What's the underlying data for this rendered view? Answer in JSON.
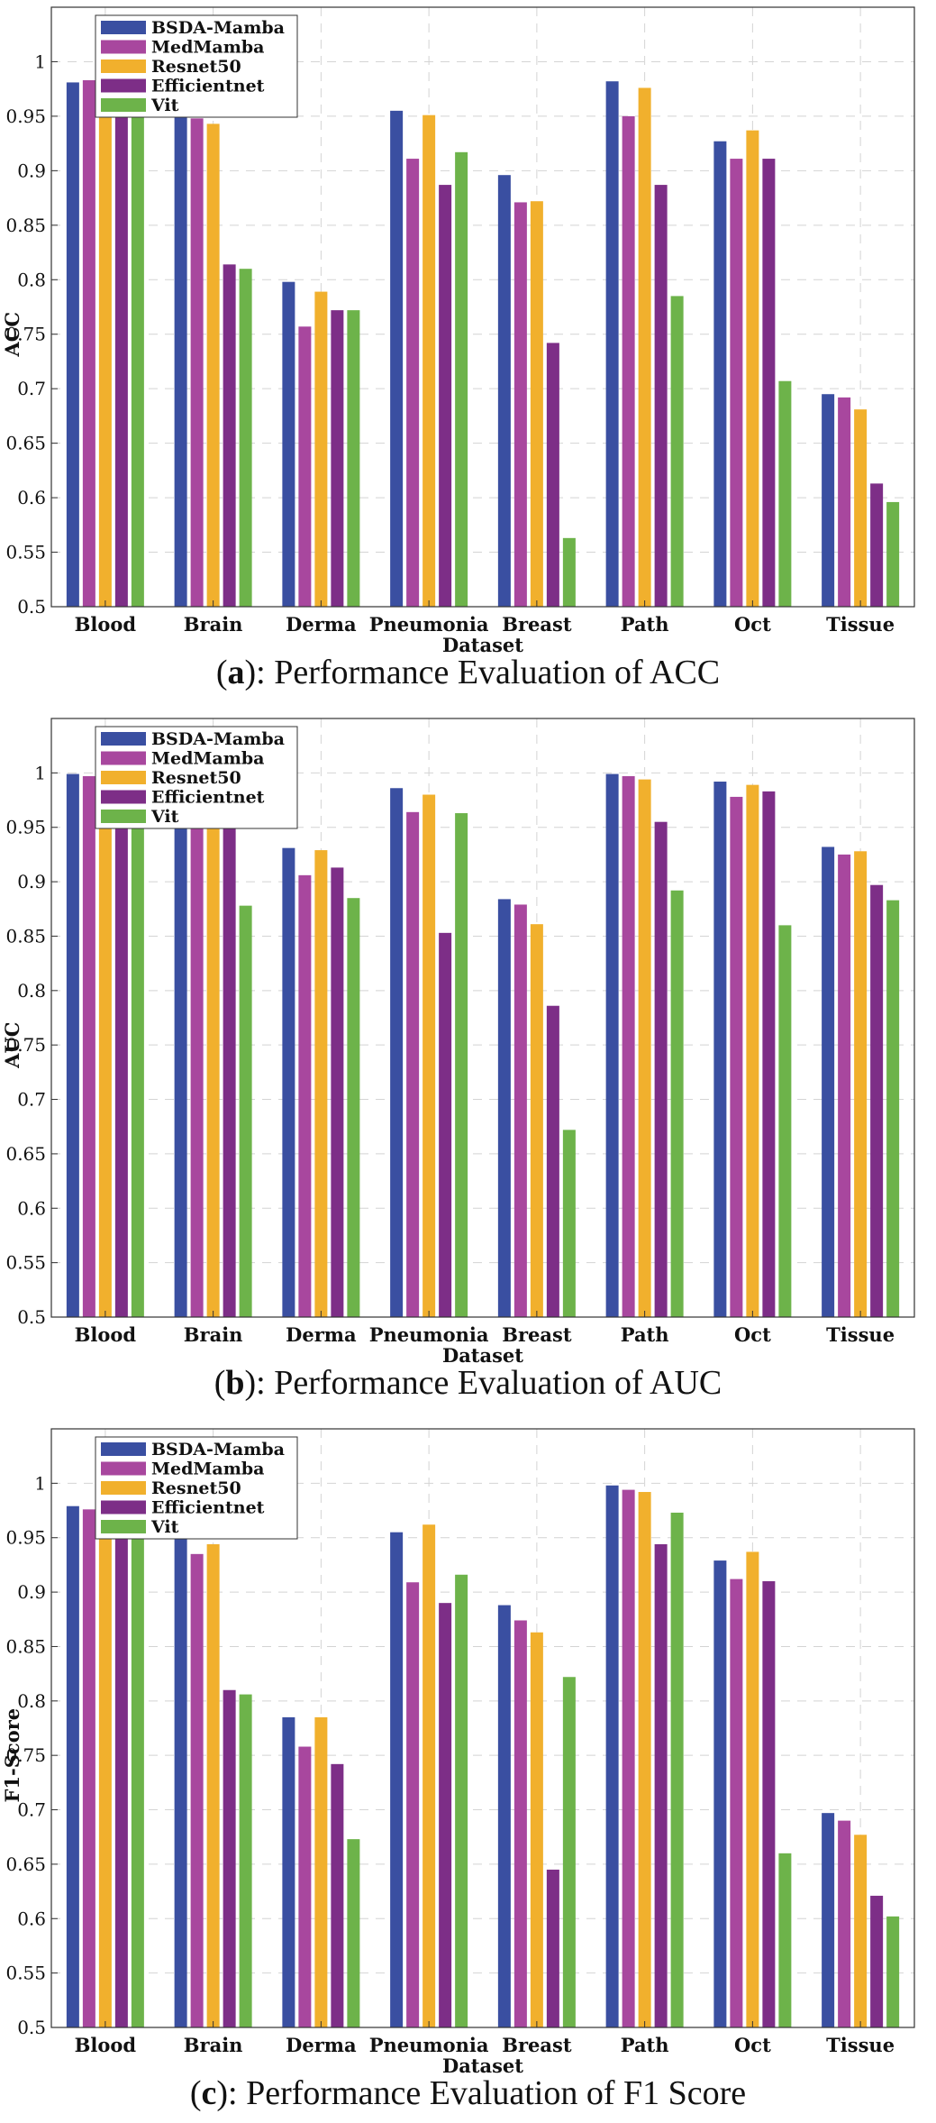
{
  "chart_data": [
    {
      "type": "bar",
      "panel": "a",
      "caption": "Performance Evaluation of ACC",
      "xlabel": "Dataset",
      "ylabel": "ACC",
      "ylim": [
        0.5,
        1.05
      ],
      "yticks": [
        "0.5",
        "0.55",
        "0.6",
        "0.65",
        "0.7",
        "0.75",
        "0.8",
        "0.85",
        "0.9",
        "0.95",
        "1"
      ],
      "grid": true,
      "legend": "top-left",
      "categories": [
        "Blood",
        "Brain",
        "Derma",
        "Pneumonia",
        "Breast",
        "Path",
        "Oct",
        "Tissue"
      ],
      "series": [
        {
          "name": "BSDA-Mamba",
          "values": [
            0.981,
            0.965,
            0.798,
            0.955,
            0.896,
            0.982,
            0.927,
            0.695
          ]
        },
        {
          "name": "MedMamba",
          "values": [
            0.983,
            0.948,
            0.757,
            0.911,
            0.871,
            0.95,
            0.911,
            0.692
          ]
        },
        {
          "name": "Resnet50",
          "values": [
            0.98,
            0.943,
            0.789,
            0.951,
            0.872,
            0.976,
            0.937,
            0.681
          ]
        },
        {
          "name": "Efficientnet",
          "values": [
            0.975,
            0.814,
            0.772,
            0.887,
            0.742,
            0.887,
            0.911,
            0.613
          ]
        },
        {
          "name": "Vit",
          "values": [
            0.968,
            0.81,
            0.772,
            0.917,
            0.563,
            0.785,
            0.707,
            0.596
          ]
        }
      ]
    },
    {
      "type": "bar",
      "panel": "b",
      "caption": "Performance Evaluation of AUC",
      "xlabel": "Dataset",
      "ylabel": "AUC",
      "ylim": [
        0.5,
        1.05
      ],
      "yticks": [
        "0.5",
        "0.55",
        "0.6",
        "0.65",
        "0.7",
        "0.75",
        "0.8",
        "0.85",
        "0.9",
        "0.95",
        "1"
      ],
      "grid": true,
      "legend": "top-left",
      "categories": [
        "Blood",
        "Brain",
        "Derma",
        "Pneumonia",
        "Breast",
        "Path",
        "Oct",
        "Tissue"
      ],
      "series": [
        {
          "name": "BSDA-Mamba",
          "values": [
            0.999,
            0.994,
            0.931,
            0.986,
            0.884,
            0.999,
            0.992,
            0.932
          ]
        },
        {
          "name": "MedMamba",
          "values": [
            0.997,
            0.991,
            0.906,
            0.964,
            0.879,
            0.997,
            0.978,
            0.925
          ]
        },
        {
          "name": "Resnet50",
          "values": [
            0.998,
            0.993,
            0.929,
            0.98,
            0.861,
            0.994,
            0.989,
            0.928
          ]
        },
        {
          "name": "Efficientnet",
          "values": [
            0.99,
            0.953,
            0.913,
            0.853,
            0.786,
            0.955,
            0.983,
            0.897
          ]
        },
        {
          "name": "Vit",
          "values": [
            0.983,
            0.878,
            0.885,
            0.963,
            0.672,
            0.892,
            0.86,
            0.883
          ]
        }
      ]
    },
    {
      "type": "bar",
      "panel": "c",
      "caption": "Performance Evaluation of F1 Score",
      "xlabel": "Dataset",
      "ylabel": "F1-Score",
      "ylim": [
        0.5,
        1.05
      ],
      "yticks": [
        "0.5",
        "0.55",
        "0.6",
        "0.65",
        "0.7",
        "0.75",
        "0.8",
        "0.85",
        "0.9",
        "0.95",
        "1"
      ],
      "grid": true,
      "legend": "top-left",
      "categories": [
        "Blood",
        "Brain",
        "Derma",
        "Pneumonia",
        "Breast",
        "Path",
        "Oct",
        "Tissue"
      ],
      "series": [
        {
          "name": "BSDA-Mamba",
          "values": [
            0.979,
            0.958,
            0.785,
            0.955,
            0.888,
            0.998,
            0.929,
            0.697
          ]
        },
        {
          "name": "MedMamba",
          "values": [
            0.976,
            0.935,
            0.758,
            0.909,
            0.874,
            0.994,
            0.912,
            0.69
          ]
        },
        {
          "name": "Resnet50",
          "values": [
            0.973,
            0.944,
            0.785,
            0.962,
            0.863,
            0.992,
            0.937,
            0.677
          ]
        },
        {
          "name": "Efficientnet",
          "values": [
            0.97,
            0.81,
            0.742,
            0.89,
            0.645,
            0.944,
            0.91,
            0.621
          ]
        },
        {
          "name": "Vit",
          "values": [
            0.967,
            0.806,
            0.673,
            0.916,
            0.822,
            0.973,
            0.66,
            0.602
          ]
        }
      ]
    }
  ],
  "series_colors": [
    "#3a4fa1",
    "#a8479e",
    "#f1b02d",
    "#7d2e87",
    "#6db34a"
  ]
}
